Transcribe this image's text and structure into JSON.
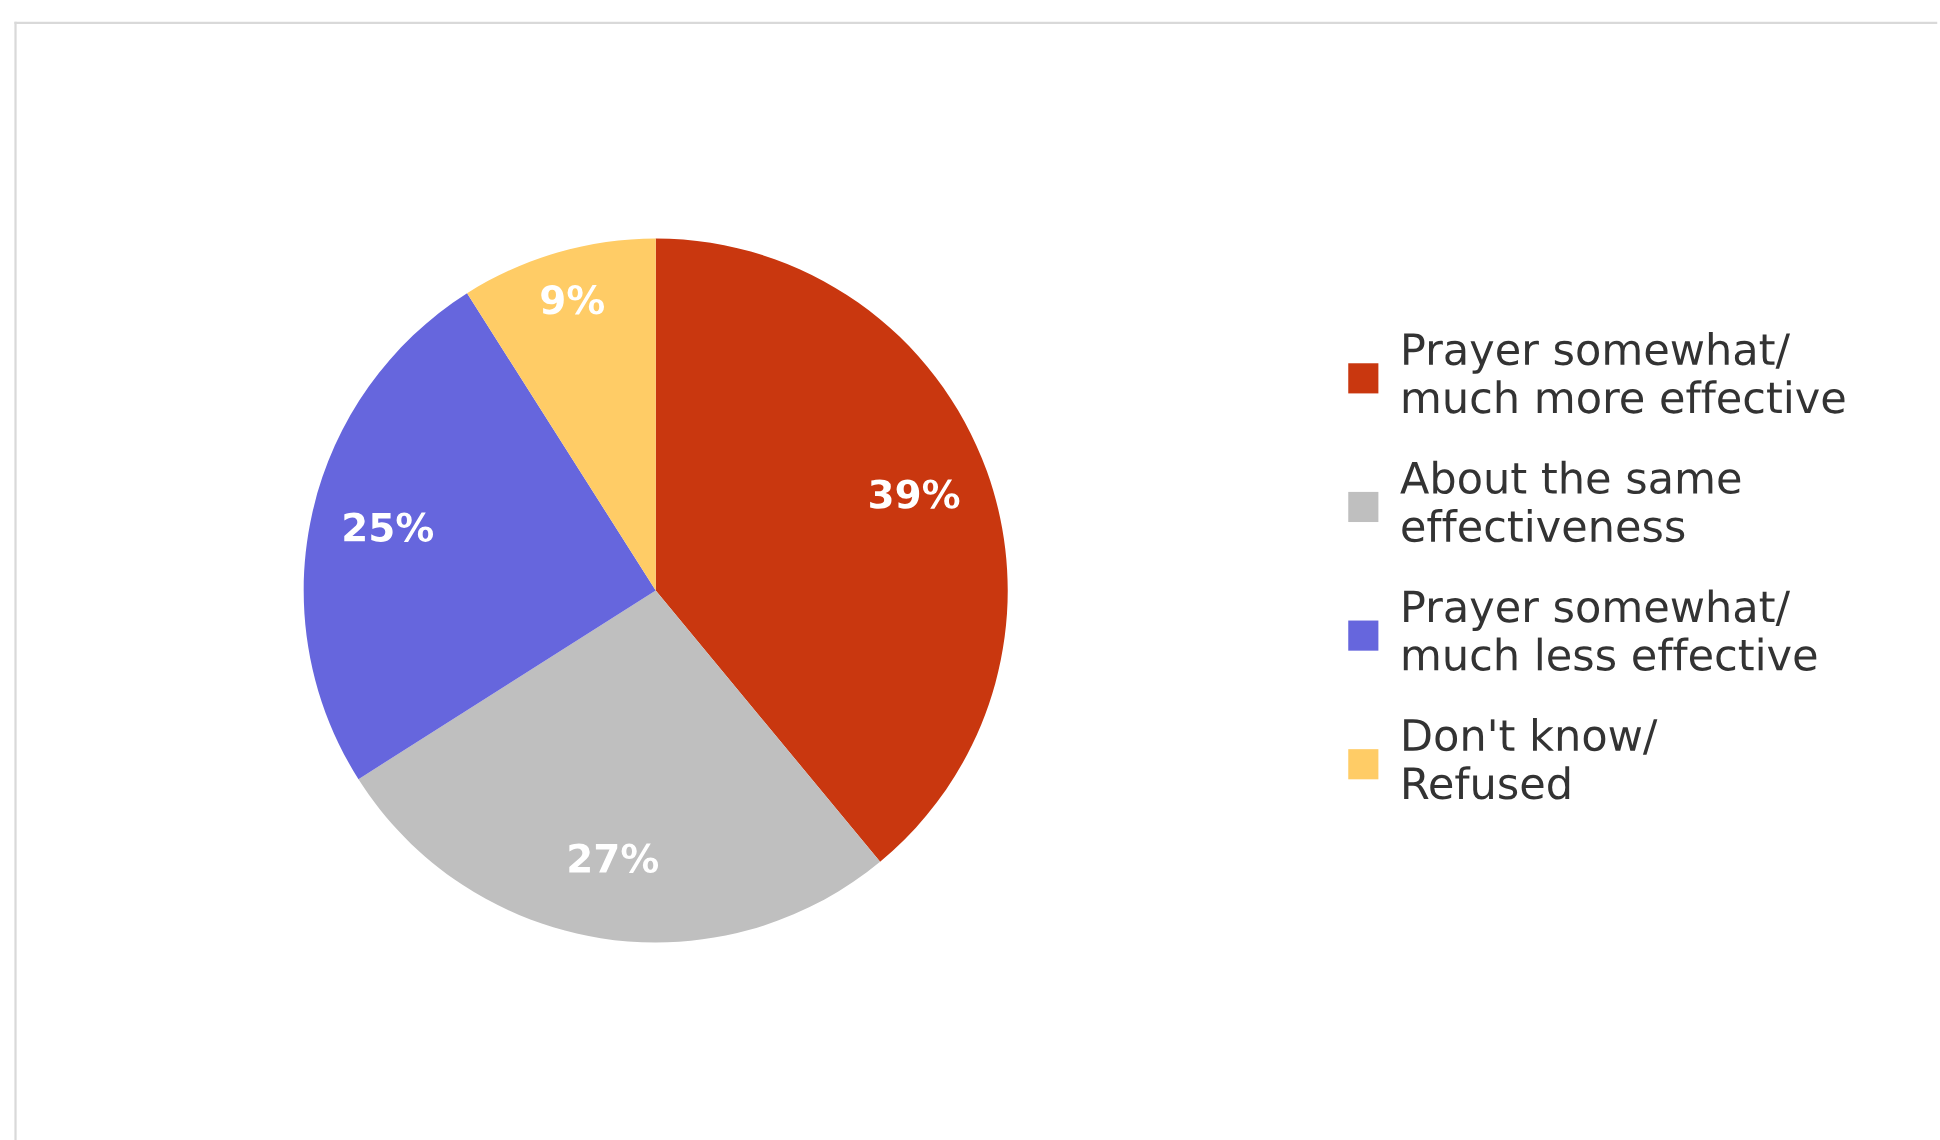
{
  "chart_data": {
    "type": "pie",
    "categories": [
      "Prayer somewhat/\nmuch more effective",
      "About the same\neffectiveness",
      "Prayer somewhat/\nmuch less effective",
      "Don't know/\nRefused"
    ],
    "values": [
      39,
      27,
      25,
      9
    ],
    "colors": [
      "#c9370f",
      "#bfbfbf",
      "#6666dd",
      "#ffcc66"
    ],
    "value_labels": [
      "39%",
      "27%",
      "25%",
      "9%"
    ],
    "legend": "right"
  }
}
